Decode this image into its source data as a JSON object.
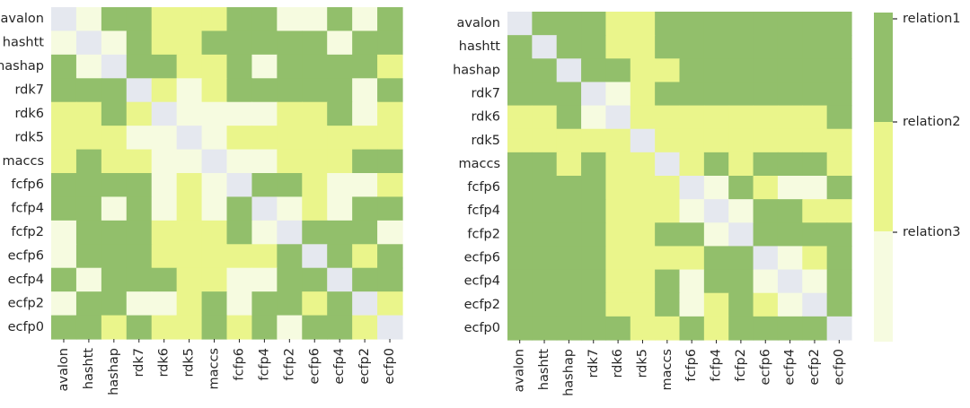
{
  "colors": {
    "relation1": "#92bf6b",
    "relation2": "#eaf58b",
    "relation3": "#f6fbe0",
    "diagonal": "#e5e8ef",
    "tick": "#262626"
  },
  "chart_data": [
    {
      "type": "heatmap",
      "name": "left-heatmap",
      "title": "",
      "xlabel": "",
      "ylabel": "",
      "rows": [
        "avalon",
        "hashtt",
        "hashap",
        "rdk7",
        "rdk6",
        "rdk5",
        "maccs",
        "fcfp6",
        "fcfp4",
        "fcfp2",
        "ecfp6",
        "ecfp4",
        "ecfp2",
        "ecfp0"
      ],
      "cols": [
        "avalon",
        "hashtt",
        "hashap",
        "rdk7",
        "rdk6",
        "rdk5",
        "maccs",
        "fcfp6",
        "fcfp4",
        "fcfp2",
        "ecfp6",
        "ecfp4",
        "ecfp2",
        "ecfp0"
      ],
      "values": [
        [
          0,
          3,
          1,
          1,
          2,
          2,
          2,
          1,
          1,
          3,
          3,
          1,
          3,
          1
        ],
        [
          3,
          0,
          3,
          1,
          2,
          2,
          1,
          1,
          1,
          1,
          1,
          3,
          1,
          1
        ],
        [
          1,
          3,
          0,
          1,
          1,
          2,
          2,
          1,
          3,
          1,
          1,
          1,
          1,
          2
        ],
        [
          1,
          1,
          1,
          0,
          2,
          3,
          2,
          1,
          1,
          1,
          1,
          1,
          3,
          1
        ],
        [
          2,
          2,
          1,
          2,
          0,
          3,
          3,
          3,
          3,
          2,
          2,
          1,
          3,
          2
        ],
        [
          2,
          2,
          2,
          3,
          3,
          0,
          3,
          2,
          2,
          2,
          2,
          2,
          2,
          2
        ],
        [
          2,
          1,
          2,
          2,
          3,
          3,
          0,
          3,
          3,
          2,
          2,
          2,
          1,
          1
        ],
        [
          1,
          1,
          1,
          1,
          3,
          2,
          3,
          0,
          1,
          1,
          2,
          3,
          3,
          2
        ],
        [
          1,
          1,
          3,
          1,
          3,
          2,
          3,
          1,
          0,
          3,
          2,
          3,
          1,
          1
        ],
        [
          3,
          1,
          1,
          1,
          2,
          2,
          2,
          1,
          3,
          0,
          1,
          1,
          1,
          3
        ],
        [
          3,
          1,
          1,
          1,
          2,
          2,
          2,
          2,
          2,
          1,
          0,
          1,
          2,
          1
        ],
        [
          1,
          3,
          1,
          1,
          1,
          2,
          2,
          3,
          3,
          1,
          1,
          0,
          1,
          1
        ],
        [
          3,
          1,
          1,
          3,
          3,
          2,
          1,
          3,
          1,
          1,
          2,
          1,
          0,
          2
        ],
        [
          1,
          1,
          2,
          1,
          2,
          2,
          1,
          2,
          1,
          3,
          1,
          1,
          2,
          0
        ]
      ]
    },
    {
      "type": "heatmap",
      "name": "right-heatmap",
      "title": "",
      "xlabel": "",
      "ylabel": "",
      "rows": [
        "avalon",
        "hashtt",
        "hashap",
        "rdk7",
        "rdk6",
        "rdk5",
        "maccs",
        "fcfp6",
        "fcfp4",
        "fcfp2",
        "ecfp6",
        "ecfp4",
        "ecfp2",
        "ecfp0"
      ],
      "cols": [
        "avalon",
        "hashtt",
        "hashap",
        "rdk7",
        "rdk6",
        "rdk5",
        "maccs",
        "fcfp6",
        "fcfp4",
        "fcfp2",
        "ecfp6",
        "ecfp4",
        "ecfp2",
        "ecfp0"
      ],
      "values": [
        [
          0,
          1,
          1,
          1,
          2,
          2,
          1,
          1,
          1,
          1,
          1,
          1,
          1,
          1
        ],
        [
          1,
          0,
          1,
          1,
          2,
          2,
          1,
          1,
          1,
          1,
          1,
          1,
          1,
          1
        ],
        [
          1,
          1,
          0,
          1,
          1,
          2,
          2,
          1,
          1,
          1,
          1,
          1,
          1,
          1
        ],
        [
          1,
          1,
          1,
          0,
          3,
          2,
          1,
          1,
          1,
          1,
          1,
          1,
          1,
          1
        ],
        [
          2,
          2,
          1,
          3,
          0,
          2,
          2,
          2,
          2,
          2,
          2,
          2,
          2,
          1
        ],
        [
          2,
          2,
          2,
          2,
          2,
          0,
          2,
          2,
          2,
          2,
          2,
          2,
          2,
          2
        ],
        [
          1,
          1,
          2,
          1,
          2,
          2,
          0,
          2,
          1,
          2,
          1,
          1,
          1,
          2
        ],
        [
          1,
          1,
          1,
          1,
          2,
          2,
          2,
          0,
          3,
          1,
          2,
          3,
          3,
          1
        ],
        [
          1,
          1,
          1,
          1,
          2,
          2,
          2,
          3,
          0,
          3,
          1,
          1,
          2,
          2
        ],
        [
          1,
          1,
          1,
          1,
          2,
          2,
          1,
          1,
          3,
          0,
          1,
          1,
          1,
          1
        ],
        [
          1,
          1,
          1,
          1,
          2,
          2,
          2,
          2,
          1,
          1,
          0,
          3,
          2,
          1
        ],
        [
          1,
          1,
          1,
          1,
          2,
          2,
          1,
          3,
          1,
          1,
          3,
          0,
          3,
          1
        ],
        [
          1,
          1,
          1,
          1,
          2,
          2,
          1,
          3,
          2,
          1,
          2,
          3,
          0,
          1
        ],
        [
          1,
          1,
          1,
          1,
          1,
          2,
          2,
          1,
          2,
          1,
          1,
          1,
          1,
          0
        ]
      ]
    }
  ],
  "colorbar": {
    "labels": [
      "relation1",
      "relation2",
      "relation3"
    ]
  }
}
